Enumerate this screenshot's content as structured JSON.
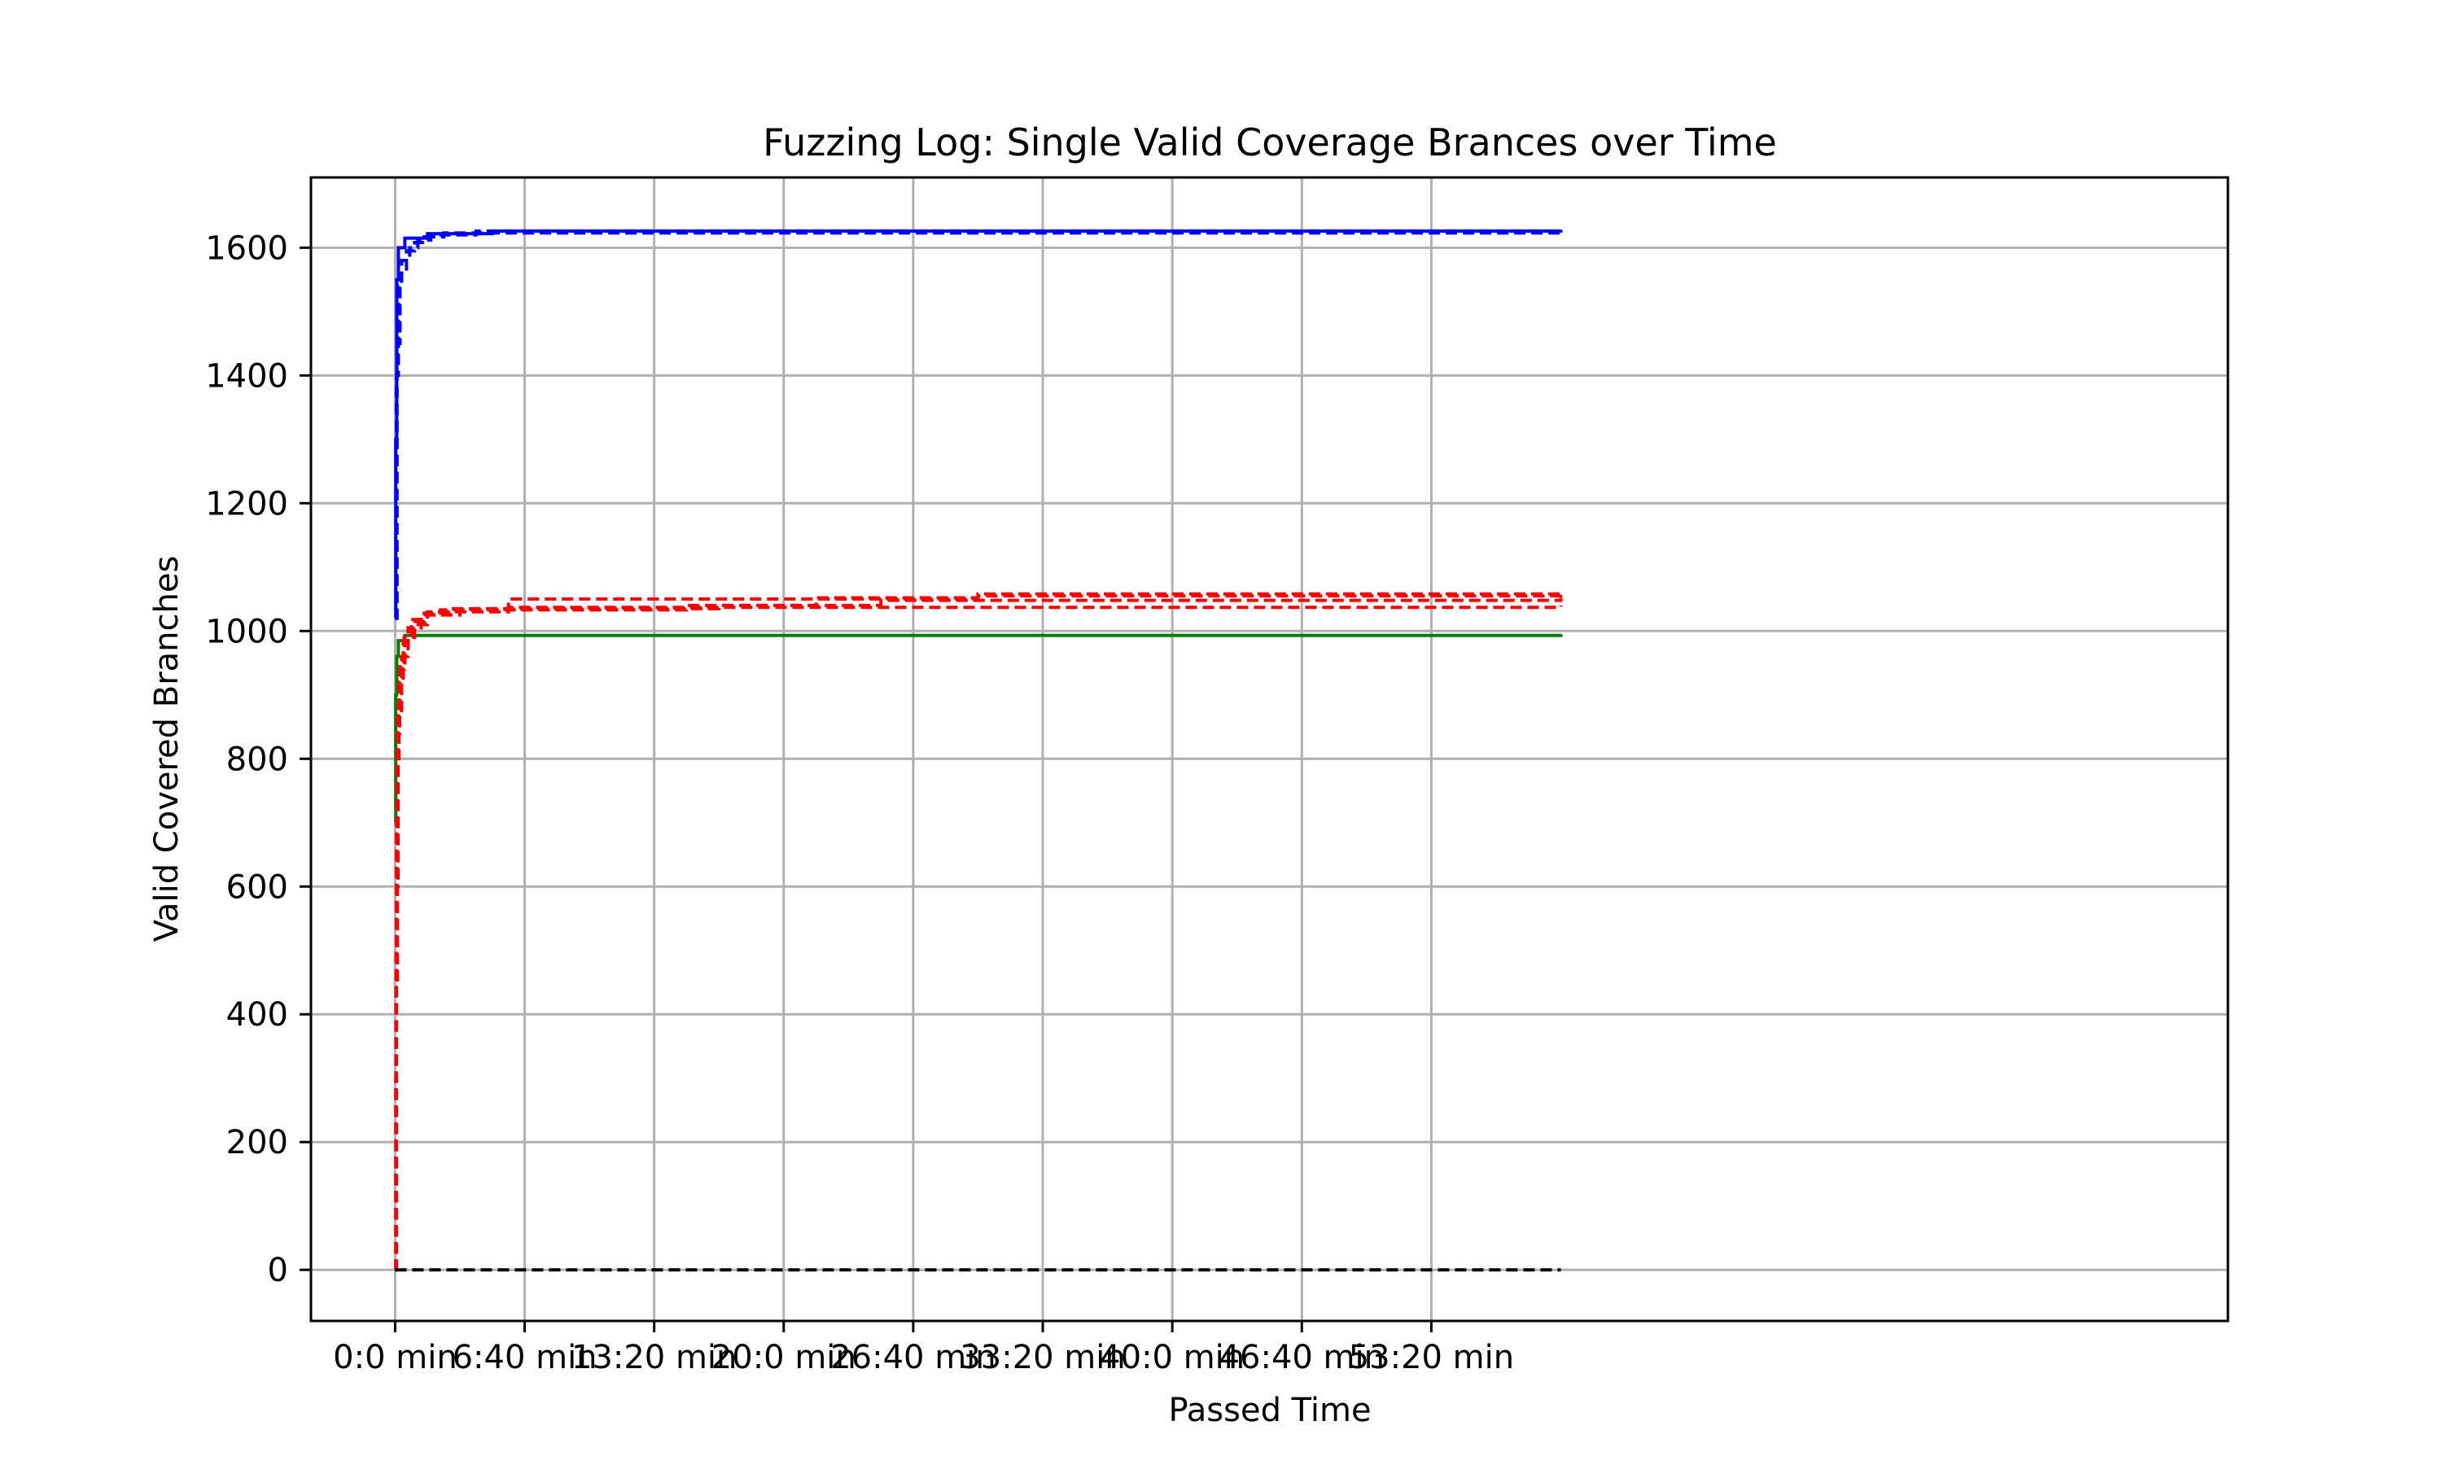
{
  "chart_data": {
    "type": "line",
    "title": "Fuzzing Log: Single Valid Coverage Brances over Time",
    "xlabel": "Passed Time",
    "ylabel": "Valid Covered Branches",
    "x_unit": "seconds",
    "xlim": [
      -260,
      5660
    ],
    "ylim": [
      -80,
      1710
    ],
    "x_ticks": [
      0,
      400,
      800,
      1200,
      1600,
      2000,
      2400,
      2800,
      3200
    ],
    "x_tick_labels": [
      "0:0 min",
      "6:40 min",
      "13:20 min",
      "20:0 min",
      "26:40 min",
      "33:20 min",
      "40:0 min",
      "46:40 min",
      "53:20 min"
    ],
    "y_ticks": [
      0,
      200,
      400,
      600,
      800,
      1000,
      1200,
      1400,
      1600
    ],
    "y_tick_labels": [
      "0",
      "200",
      "400",
      "600",
      "800",
      "1000",
      "1200",
      "1400",
      "1600"
    ],
    "grid": true,
    "legend": "none",
    "series": [
      {
        "color": "#0000ff",
        "style": "solid",
        "points": [
          [
            0,
            1020
          ],
          [
            2,
            1300
          ],
          [
            5,
            1550
          ],
          [
            10,
            1600
          ],
          [
            30,
            1615
          ],
          [
            100,
            1622
          ],
          [
            300,
            1626
          ],
          [
            3600,
            1628
          ]
        ]
      },
      {
        "color": "#0000ff",
        "style": "dashed",
        "points": [
          [
            0,
            1020
          ],
          [
            4,
            1400
          ],
          [
            10,
            1540
          ],
          [
            20,
            1580
          ],
          [
            45,
            1600
          ],
          [
            70,
            1612
          ],
          [
            110,
            1620
          ],
          [
            250,
            1626
          ],
          [
            3600,
            1628
          ]
        ]
      },
      {
        "color": "#0000ff",
        "style": "dashed",
        "points": [
          [
            0,
            1020
          ],
          [
            6,
            1450
          ],
          [
            15,
            1560
          ],
          [
            35,
            1595
          ],
          [
            60,
            1608
          ],
          [
            90,
            1617
          ],
          [
            150,
            1623
          ],
          [
            3600,
            1628
          ]
        ]
      },
      {
        "color": "#008000",
        "style": "solid",
        "points": [
          [
            0,
            700
          ],
          [
            2,
            900
          ],
          [
            5,
            960
          ],
          [
            10,
            985
          ],
          [
            30,
            993
          ],
          [
            3600,
            995
          ]
        ]
      },
      {
        "color": "#ff0000",
        "style": "dashed",
        "points": [
          [
            0,
            0
          ],
          [
            2,
            300
          ],
          [
            4,
            700
          ],
          [
            8,
            880
          ],
          [
            15,
            950
          ],
          [
            30,
            990
          ],
          [
            60,
            1010
          ],
          [
            100,
            1025
          ],
          [
            200,
            1033
          ],
          [
            350,
            1037
          ],
          [
            3600,
            1040
          ]
        ]
      },
      {
        "color": "#ff0000",
        "style": "dashed",
        "points": [
          [
            0,
            0
          ],
          [
            3,
            500
          ],
          [
            6,
            800
          ],
          [
            12,
            920
          ],
          [
            25,
            985
          ],
          [
            50,
            1015
          ],
          [
            90,
            1028
          ],
          [
            180,
            1035
          ],
          [
            1000,
            1040
          ],
          [
            1300,
            1050
          ],
          [
            1800,
            1058
          ],
          [
            3600,
            1060
          ]
        ]
      },
      {
        "color": "#ff0000",
        "style": "dashed",
        "points": [
          [
            0,
            0
          ],
          [
            3,
            450
          ],
          [
            7,
            840
          ],
          [
            14,
            940
          ],
          [
            28,
            990
          ],
          [
            55,
            1018
          ],
          [
            100,
            1030
          ],
          [
            350,
            1038
          ],
          [
            350,
            1050
          ],
          [
            1300,
            1052
          ],
          [
            1800,
            1055
          ],
          [
            3600,
            1056
          ]
        ]
      },
      {
        "color": "#ff0000",
        "style": "dashed",
        "points": [
          [
            0,
            0
          ],
          [
            4,
            600
          ],
          [
            9,
            870
          ],
          [
            20,
            960
          ],
          [
            40,
            1005
          ],
          [
            80,
            1025
          ],
          [
            140,
            1033
          ],
          [
            900,
            1040
          ],
          [
            1500,
            1048
          ],
          [
            3600,
            1052
          ]
        ]
      },
      {
        "color": "#000000",
        "style": "dashed",
        "points": [
          [
            0,
            0
          ],
          [
            3600,
            0
          ]
        ]
      }
    ]
  }
}
